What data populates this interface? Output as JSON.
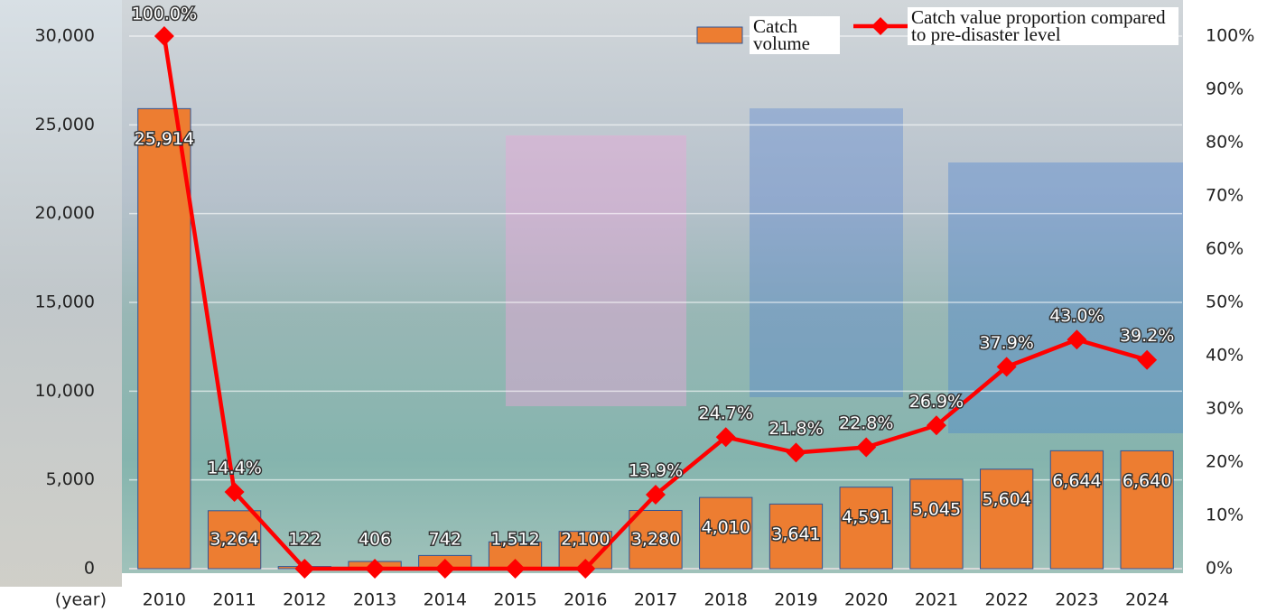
{
  "chart_data": {
    "type": "bar_line",
    "x_label": "(year)",
    "categories": [
      "2010",
      "2011",
      "2012",
      "2013",
      "2014",
      "2015",
      "2016",
      "2017",
      "2018",
      "2019",
      "2020",
      "2021",
      "2022",
      "2023",
      "2024"
    ],
    "series": [
      {
        "name": "Catch volume",
        "type": "bar",
        "color": "#ed7d31",
        "values": [
          25914,
          3264,
          122,
          406,
          742,
          1512,
          2100,
          3280,
          4010,
          3641,
          4591,
          5045,
          5604,
          6644,
          6640
        ],
        "value_labels": [
          "25,914",
          "3,264",
          "122",
          "406",
          "742",
          "1,512",
          "2,100",
          "3,280",
          "4,010",
          "3,641",
          "4,591",
          "5,045",
          "5,604",
          "6,644",
          "6,640"
        ]
      },
      {
        "name": "Catch value proportion compared to pre-disaster level",
        "type": "line",
        "axis": "y2",
        "color": "#ff0000",
        "values": [
          100.0,
          14.4,
          0,
          0,
          0,
          0,
          0,
          13.9,
          24.7,
          21.8,
          22.8,
          26.9,
          37.9,
          43.0,
          39.2
        ],
        "value_labels": [
          "100.0%",
          "14.4%",
          null,
          null,
          null,
          null,
          null,
          "13.9%",
          "24.7%",
          "21.8%",
          "22.8%",
          "26.9%",
          "37.9%",
          "43.0%",
          "39.2%"
        ]
      }
    ],
    "ylim": [
      0,
      30000
    ],
    "yticks": [
      0,
      {
        "value": 5000,
        "label": "5,000"
      },
      {
        "value": 10000,
        "label": "10,000"
      },
      {
        "value": 15000,
        "label": "15,000"
      },
      {
        "value": 20000,
        "label": "20,000"
      },
      {
        "value": 25000,
        "label": "25,000"
      },
      {
        "value": 30000,
        "label": "30,000"
      }
    ],
    "y2lim": [
      0,
      100
    ],
    "y2ticks": [
      {
        "value": 0,
        "label": "0%"
      },
      {
        "value": 10,
        "label": "10%"
      },
      {
        "value": 20,
        "label": "20%"
      },
      {
        "value": 30,
        "label": "30%"
      },
      {
        "value": 40,
        "label": "40%"
      },
      {
        "value": 50,
        "label": "50%"
      },
      {
        "value": 60,
        "label": "60%"
      },
      {
        "value": 70,
        "label": "70%"
      },
      {
        "value": 80,
        "label": "80%"
      },
      {
        "value": 90,
        "label": "90%"
      },
      {
        "value": 100,
        "label": "100%"
      }
    ],
    "grid": true
  }
}
